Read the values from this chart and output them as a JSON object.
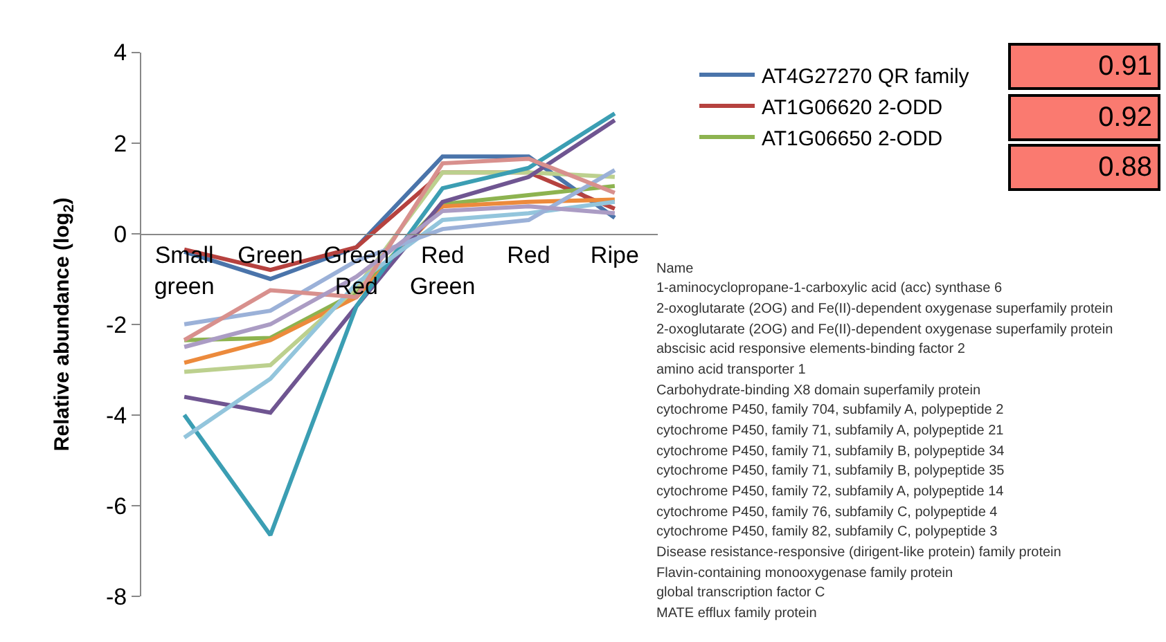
{
  "chart_data": {
    "type": "line",
    "ylabel": "Relative abundance (log$_{2}$)",
    "categories": [
      "Small green",
      "Green",
      "Green Red",
      "Red Green",
      "Red",
      "Ripe"
    ],
    "ylim": [
      -8,
      4
    ],
    "yticks": [
      -8,
      -6,
      -4,
      -2,
      0,
      2,
      4
    ],
    "legend": "top right",
    "line_style": "solid",
    "marker": "none",
    "series": [
      {
        "name": "AT4G27270 QR family",
        "color": "#4a74aa",
        "values": [
          -0.4,
          -1.0,
          -0.3,
          1.7,
          1.7,
          0.35
        ]
      },
      {
        "name": "AT1G06620 2-ODD",
        "color": "#b6423f",
        "values": [
          -0.35,
          -0.8,
          -0.3,
          1.35,
          1.35,
          0.55
        ]
      },
      {
        "name": "AT1G06650 2-ODD",
        "color": "#8db350",
        "values": [
          -2.35,
          -2.3,
          -1.3,
          0.65,
          0.85,
          1.05
        ]
      },
      {
        "color": "#ec8a3c",
        "values": [
          -2.85,
          -2.35,
          -1.4,
          0.6,
          0.7,
          0.75
        ]
      },
      {
        "color": "#bcd08e",
        "values": [
          -3.05,
          -2.9,
          -1.2,
          1.35,
          1.35,
          1.25
        ]
      },
      {
        "color": "#6f5591",
        "values": [
          -3.6,
          -3.95,
          -1.6,
          0.7,
          1.25,
          2.5
        ]
      },
      {
        "color": "#3b9eb3",
        "values": [
          -4.0,
          -6.65,
          -1.6,
          1.0,
          1.45,
          2.65
        ]
      },
      {
        "color": "#93c5dc",
        "values": [
          -4.5,
          -3.2,
          -1.1,
          0.3,
          0.45,
          0.7
        ]
      },
      {
        "color": "#9bb1d8",
        "values": [
          -2.0,
          -1.7,
          -0.6,
          0.1,
          0.3,
          1.4
        ]
      },
      {
        "color": "#d8908d",
        "values": [
          -2.35,
          -1.25,
          -1.4,
          1.55,
          1.65,
          0.9
        ]
      },
      {
        "color": "#ab9cc4",
        "values": [
          -2.5,
          -2.0,
          -0.95,
          0.5,
          0.6,
          0.45
        ]
      }
    ],
    "annotations": [
      "0.91",
      "0.92",
      "0.88",
      "Name",
      "1-aminocyclopropane-1-carboxylic acid (acc) synthase 6",
      "2-oxoglutarate (2OG) and Fe(II)-dependent oxygenase superfamily protein",
      "2-oxoglutarate (2OG) and Fe(II)-dependent oxygenase superfamily protein",
      "abscisic acid responsive elements-binding factor 2",
      "amino acid transporter 1",
      "Carbohydrate-binding X8 domain superfamily protein",
      "cytochrome P450, family 704, subfamily A, polypeptide 2",
      "cytochrome P450, family 71, subfamily A, polypeptide 21",
      "cytochrome P450, family 71, subfamily B, polypeptide 34",
      "cytochrome P450, family 71, subfamily B, polypeptide 35",
      "cytochrome P450, family 72, subfamily A, polypeptide 14",
      "cytochrome P450, family 76, subfamily C, polypeptide 4",
      "cytochrome P450, family 82, subfamily C, polypeptide 3",
      "Disease resistance-responsive (dirigent-like protein) family protein",
      "Flavin-containing monooxygenase family protein",
      "global transcription factor C",
      "MATE efflux family protein"
    ]
  }
}
